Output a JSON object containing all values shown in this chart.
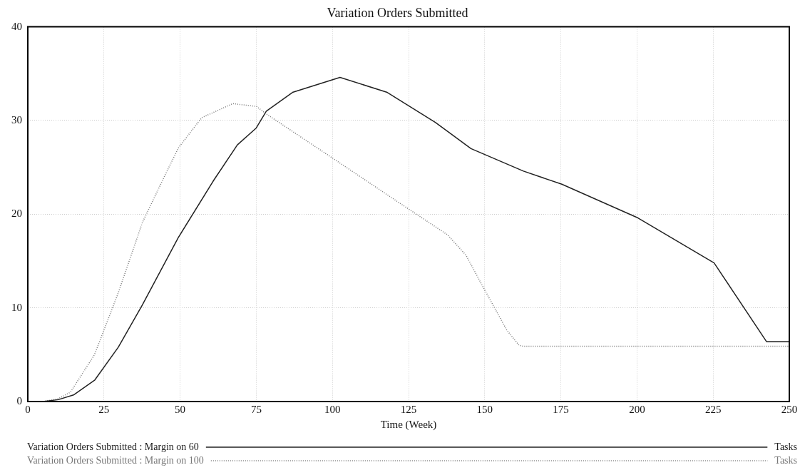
{
  "chart_data": {
    "type": "line",
    "title": "Variation Orders Submitted",
    "xlabel": "Time (Week)",
    "xlim": [
      0,
      250
    ],
    "xticks": [
      0,
      25,
      50,
      75,
      100,
      125,
      150,
      175,
      200,
      225,
      250
    ],
    "ylim": [
      0,
      40
    ],
    "yticks": [
      0,
      10,
      20,
      30,
      40
    ],
    "grid": true,
    "legend": "bottom",
    "marker": "none",
    "annotations": [
      "Tasks",
      "Tasks"
    ],
    "series": [
      {
        "name": "Variation Orders Submitted : Margin on 60",
        "color": "#222222",
        "line_style": "solid",
        "x": [
          0,
          5,
          10,
          15,
          22,
          29.7,
          37.6,
          49.4,
          61,
          68.8,
          75,
          78.3,
          86.9,
          102.5,
          118,
          133.8,
          145.5,
          162.7,
          175.3,
          200.3,
          225.3,
          242.5,
          250
        ],
        "values": [
          0,
          0,
          0.2,
          0.7,
          2.3,
          5.8,
          10.3,
          17.5,
          23.6,
          27.4,
          29.2,
          31,
          33,
          34.6,
          33,
          29.8,
          27,
          24.6,
          23.2,
          19.6,
          14.8,
          6.4,
          6.4
        ]
      },
      {
        "name": "Variation Orders Submitted : Margin on 100",
        "color": "#777777",
        "line_style": "dotted",
        "x": [
          0,
          5,
          10,
          14,
          21.9,
          29.7,
          37.6,
          45.4,
          49.5,
          57.1,
          67.3,
          75.1,
          78.3,
          98.6,
          122,
          137.8,
          143.9,
          149.5,
          157.3,
          161.3,
          162.7,
          250
        ],
        "values": [
          0,
          0,
          0.3,
          1,
          5,
          11.6,
          19.1,
          24.4,
          27.1,
          30.3,
          31.8,
          31.5,
          30.7,
          26.3,
          21.2,
          17.8,
          15.6,
          12.2,
          7.6,
          6,
          5.9,
          5.9
        ]
      }
    ]
  }
}
